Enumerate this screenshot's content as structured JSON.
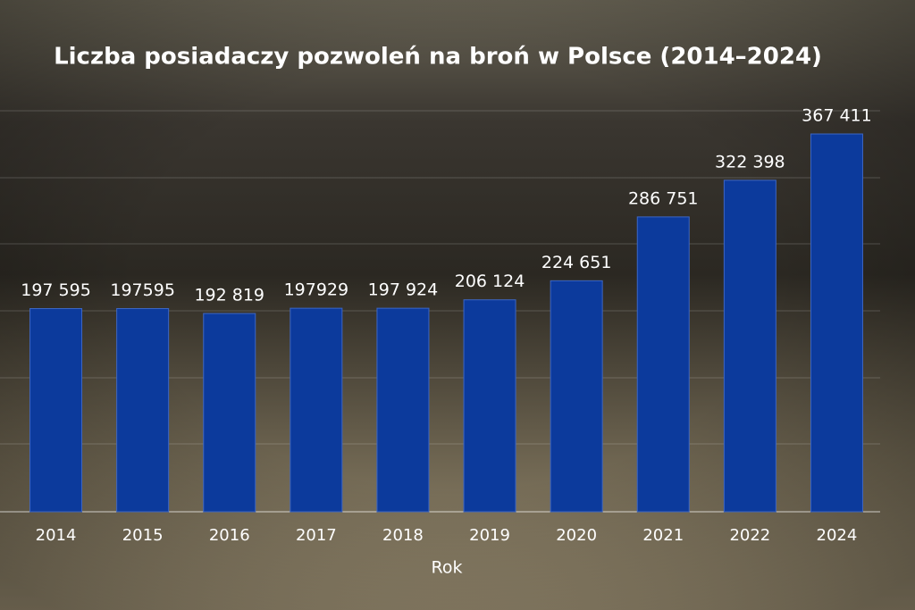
{
  "chart_data": {
    "type": "bar",
    "title": "Liczba posiadaczy pozwoleń na broń w Polsce (2014–2024)",
    "x_label": "Rok",
    "categories": [
      "2014",
      "2015",
      "2016",
      "2017",
      "2018",
      "2019",
      "2020",
      "2021",
      "2022",
      "2024"
    ],
    "values": [
      197595,
      197595,
      192819,
      197929,
      197924,
      206124,
      224651,
      286751,
      322398,
      367411
    ],
    "value_labels": [
      "197 595",
      "197595",
      "192 819",
      "197929",
      "197 924",
      "206 124",
      "224 651",
      "286 751",
      "322 398",
      "367 411"
    ],
    "color": "#0c3a9c",
    "ylim": [
      0,
      390000
    ]
  }
}
